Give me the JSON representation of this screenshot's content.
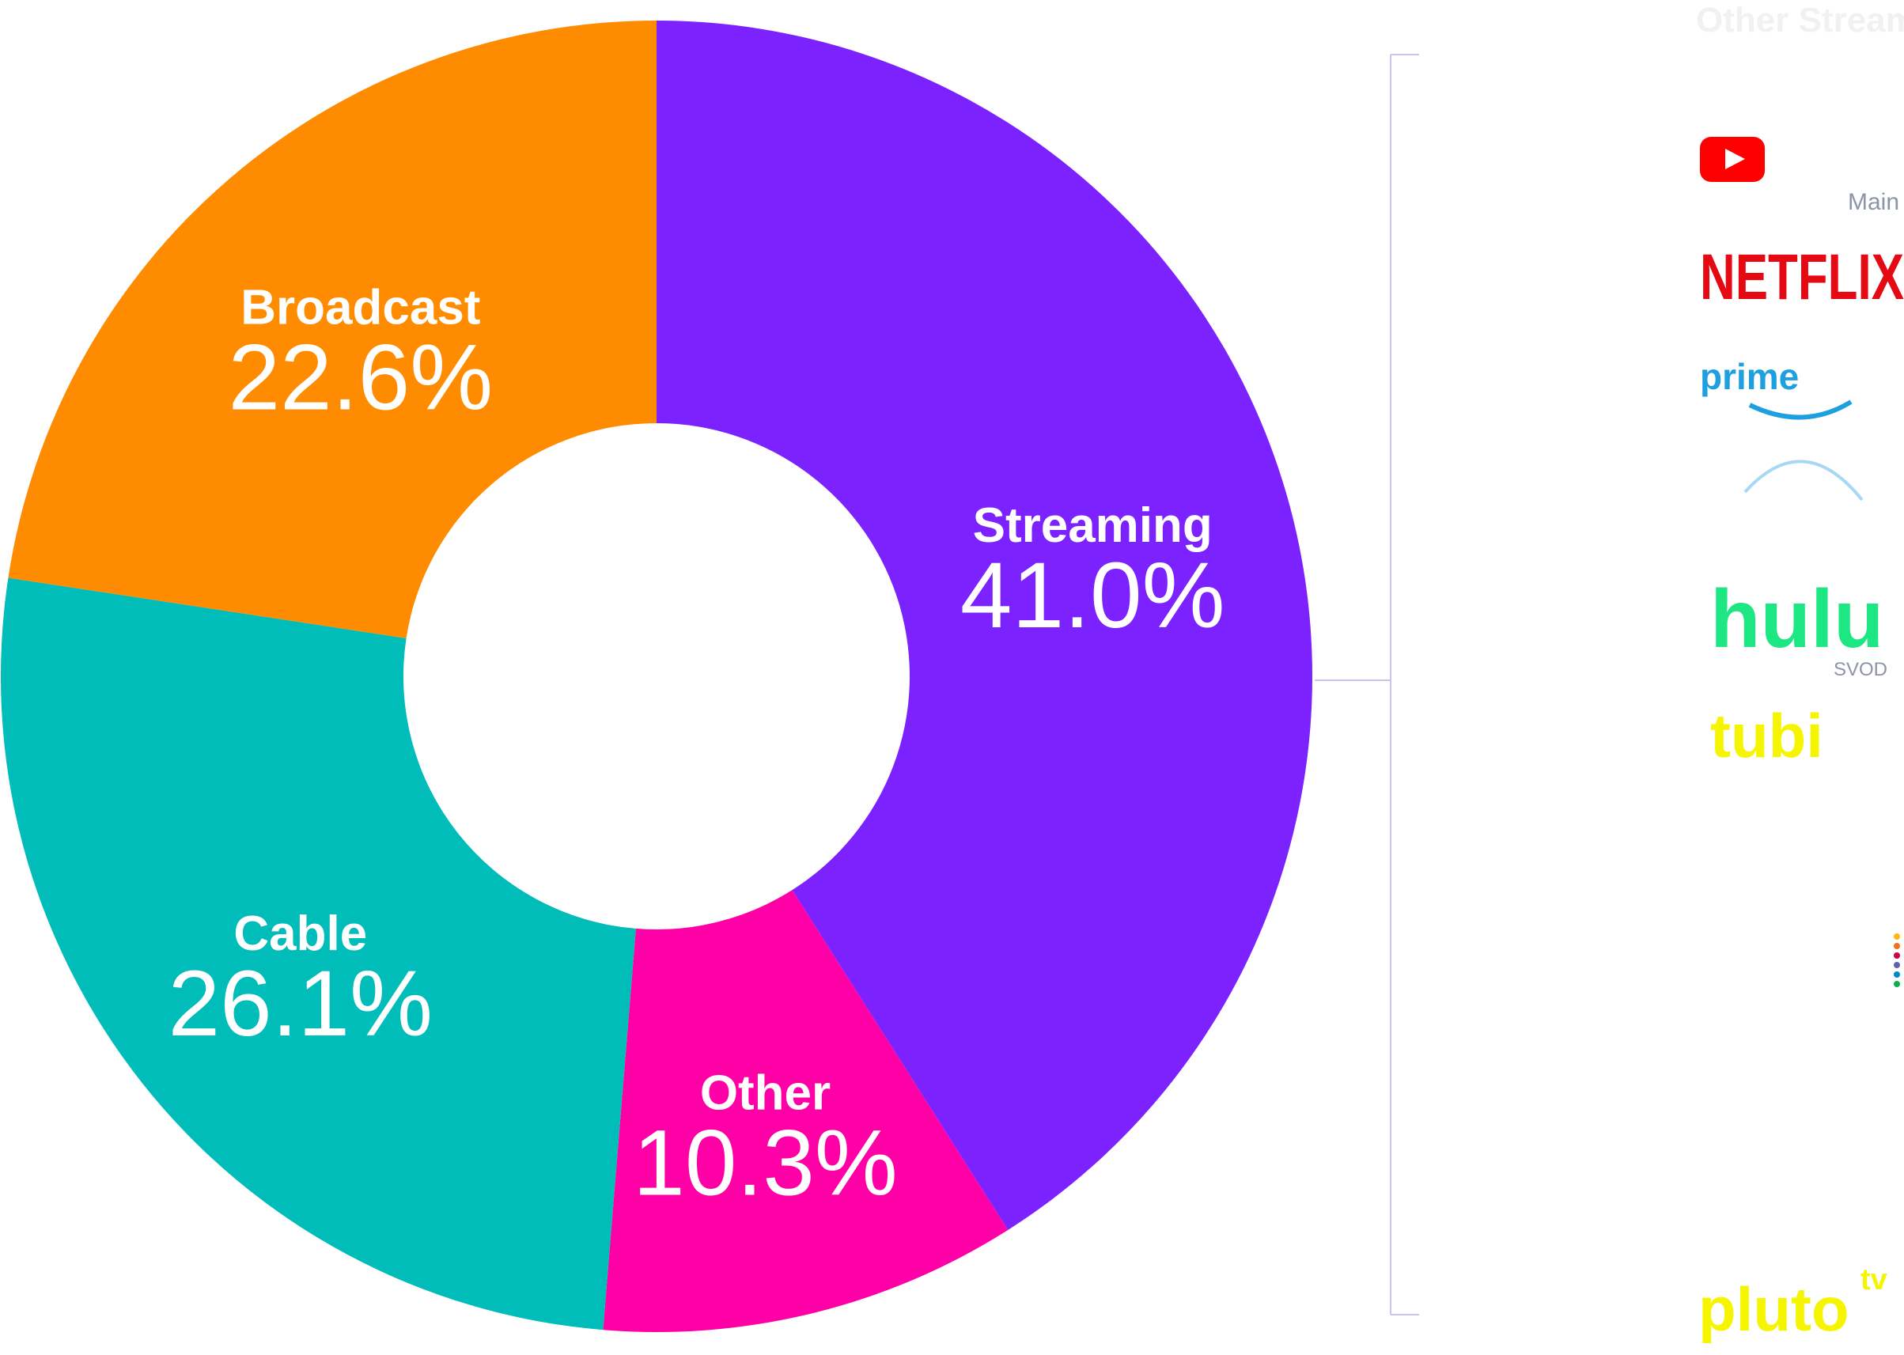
{
  "chart_data": {
    "type": "pie",
    "categories": [
      "Streaming",
      "Other",
      "Cable",
      "Broadcast"
    ],
    "values": [
      41.0,
      10.3,
      26.1,
      22.6
    ],
    "value_labels": [
      "41.0%",
      "10.3%",
      "26.1%",
      "22.6%"
    ],
    "colors": [
      "#7b22ff",
      "#ff00a6",
      "#00bdb9",
      "#ff8c00"
    ],
    "donut": true
  },
  "streaming_panel": {
    "title": "Other Streaming",
    "brands": [
      "Main",
      "NETFLIX",
      "prime",
      "hulu",
      "SVOD",
      "tubi",
      "pluto",
      "tv"
    ]
  }
}
